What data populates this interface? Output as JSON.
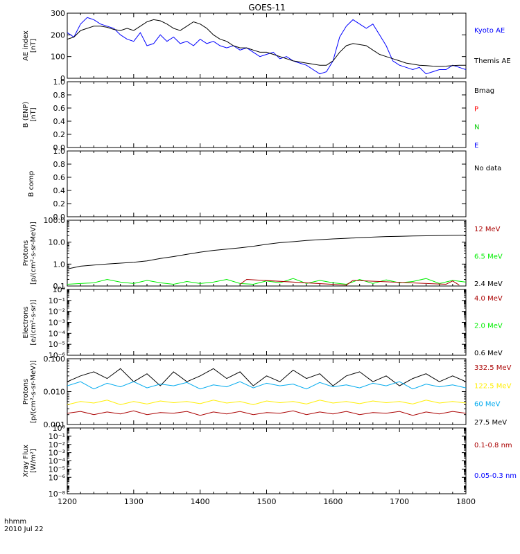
{
  "chart_data": {
    "type": "line",
    "title": "GOES-11",
    "x_footer": {
      "line1": "hhmm",
      "line2": "2010 Jul 22"
    },
    "x_ticks": [
      "1200",
      "1300",
      "1400",
      "1500",
      "1600",
      "1700",
      "1800"
    ],
    "x_range": [
      1200,
      1800
    ],
    "colors": {
      "black": "#000000",
      "blue": "#0000ff",
      "red": "#ff0000",
      "green": "#00cc00",
      "darkred": "#aa0000",
      "lime": "#00ee00",
      "yellow": "#ffee00",
      "cyan": "#00aaee",
      "navy": "#0000ff"
    },
    "panels": [
      {
        "id": "ae",
        "ylabel": [
          "AE index",
          "[nT]"
        ],
        "scale": "linear",
        "ylim": [
          0,
          300
        ],
        "yticks": [
          "0",
          "100",
          "200",
          "300"
        ],
        "yticks_values": [
          0,
          100,
          200,
          300
        ],
        "legend": [
          {
            "label": "Kyoto AE",
            "color": "#0000ff"
          },
          {
            "label": "Themis AE",
            "color": "#000000"
          }
        ],
        "series": [
          {
            "name": "Kyoto AE",
            "color": "#0000ff",
            "x": [
              1200,
              1210,
              1220,
              1230,
              1240,
              1250,
              1260,
              1270,
              1280,
              1290,
              1300,
              1310,
              1320,
              1330,
              1340,
              1350,
              1360,
              1370,
              1380,
              1390,
              1400,
              1410,
              1420,
              1430,
              1440,
              1450,
              1460,
              1470,
              1480,
              1490,
              1500,
              1510,
              1520,
              1530,
              1540,
              1550,
              1560,
              1570,
              1580,
              1590,
              1600,
              1610,
              1620,
              1630,
              1640,
              1650,
              1660,
              1670,
              1680,
              1690,
              1700,
              1710,
              1720,
              1730,
              1740,
              1750,
              1760,
              1770,
              1780,
              1790,
              1800
            ],
            "y": [
              210,
              190,
              250,
              280,
              270,
              250,
              240,
              230,
              200,
              180,
              170,
              210,
              150,
              160,
              200,
              170,
              190,
              160,
              170,
              150,
              180,
              160,
              170,
              150,
              140,
              150,
              130,
              140,
              120,
              100,
              110,
              120,
              90,
              100,
              80,
              70,
              60,
              40,
              20,
              30,
              80,
              190,
              240,
              270,
              250,
              230,
              250,
              200,
              150,
              80,
              60,
              50,
              40,
              50,
              20,
              30,
              40,
              40,
              60,
              50,
              40
            ]
          },
          {
            "name": "Themis AE",
            "color": "#000000",
            "x": [
              1200,
              1210,
              1220,
              1230,
              1240,
              1250,
              1260,
              1270,
              1280,
              1290,
              1300,
              1310,
              1320,
              1330,
              1340,
              1350,
              1360,
              1370,
              1380,
              1390,
              1400,
              1410,
              1420,
              1430,
              1440,
              1450,
              1460,
              1470,
              1480,
              1490,
              1500,
              1510,
              1520,
              1530,
              1540,
              1550,
              1560,
              1570,
              1580,
              1590,
              1600,
              1610,
              1620,
              1630,
              1640,
              1650,
              1660,
              1670,
              1680,
              1690,
              1700,
              1710,
              1720,
              1730,
              1740,
              1750,
              1760,
              1770,
              1780,
              1790,
              1800
            ],
            "y": [
              180,
              190,
              220,
              230,
              240,
              240,
              235,
              225,
              220,
              230,
              220,
              240,
              260,
              270,
              265,
              250,
              230,
              220,
              240,
              260,
              250,
              230,
              200,
              180,
              170,
              150,
              140,
              140,
              130,
              120,
              120,
              110,
              100,
              90,
              80,
              75,
              70,
              65,
              60,
              60,
              80,
              120,
              150,
              160,
              155,
              150,
              130,
              110,
              100,
              90,
              80,
              70,
              65,
              60,
              58,
              56,
              55,
              56,
              58,
              60,
              60
            ]
          }
        ]
      },
      {
        "id": "b_enp",
        "ylabel": [
          "B (ENP)",
          "[nT]"
        ],
        "scale": "linear",
        "ylim": [
          0,
          1
        ],
        "yticks": [
          "0.0",
          "0.2",
          "0.4",
          "0.6",
          "0.8",
          "1.0"
        ],
        "yticks_values": [
          0,
          0.2,
          0.4,
          0.6,
          0.8,
          1.0
        ],
        "legend": [
          {
            "label": "Bmag",
            "color": "#000000"
          },
          {
            "label": "P",
            "color": "#ff0000"
          },
          {
            "label": "N",
            "color": "#00cc00"
          },
          {
            "label": "E",
            "color": "#0000ff"
          }
        ],
        "series": []
      },
      {
        "id": "b_comp",
        "ylabel": [
          "B comp"
        ],
        "scale": "linear",
        "ylim": [
          0,
          1
        ],
        "yticks": [
          "0.0",
          "0.2",
          "0.4",
          "0.6",
          "0.8",
          "1.0"
        ],
        "yticks_values": [
          0,
          0.2,
          0.4,
          0.6,
          0.8,
          1.0
        ],
        "legend": [
          {
            "label": "No data",
            "color": "#000000"
          }
        ],
        "series": []
      },
      {
        "id": "protons_low",
        "ylabel": [
          "Protons",
          "[p/(cm²-s-sr-MeV)]"
        ],
        "scale": "log",
        "ylim": [
          0.1,
          100
        ],
        "yticks": [
          "0.1",
          "1.0",
          "10.0",
          "100.0"
        ],
        "yticks_values": [
          0.1,
          1,
          10,
          100
        ],
        "legend": [
          {
            "label": "12 MeV",
            "color": "#aa0000"
          },
          {
            "label": "6.5 MeV",
            "color": "#00ee00"
          },
          {
            "label": "2.4 MeV",
            "color": "#000000"
          }
        ],
        "series": [
          {
            "name": "2.4 MeV",
            "color": "#000000",
            "x": [
              1200,
              1220,
              1240,
              1260,
              1280,
              1300,
              1320,
              1340,
              1360,
              1380,
              1400,
              1420,
              1440,
              1460,
              1480,
              1500,
              1520,
              1540,
              1560,
              1580,
              1600,
              1620,
              1640,
              1660,
              1680,
              1700,
              1720,
              1740,
              1760,
              1780,
              1800
            ],
            "y": [
              0.6,
              0.8,
              0.9,
              1.0,
              1.1,
              1.2,
              1.4,
              1.8,
              2.2,
              2.8,
              3.5,
              4.2,
              4.8,
              5.5,
              6.5,
              8,
              9.5,
              10.5,
              12,
              13,
              14,
              15,
              16,
              17,
              18,
              18.5,
              19,
              19.5,
              20,
              20.5,
              21
            ]
          },
          {
            "name": "6.5 MeV",
            "color": "#00ee00",
            "x": [
              1200,
              1220,
              1240,
              1260,
              1280,
              1300,
              1320,
              1340,
              1360,
              1380,
              1400,
              1420,
              1440,
              1460,
              1480,
              1500,
              1520,
              1540,
              1560,
              1580,
              1600,
              1620,
              1640,
              1660,
              1680,
              1700,
              1720,
              1740,
              1760,
              1780,
              1800
            ],
            "y": [
              0.12,
              0.13,
              0.14,
              0.2,
              0.15,
              0.13,
              0.18,
              0.14,
              0.12,
              0.16,
              0.13,
              0.15,
              0.2,
              0.13,
              0.12,
              0.17,
              0.14,
              0.22,
              0.13,
              0.18,
              0.14,
              0.12,
              0.2,
              0.13,
              0.19,
              0.14,
              0.16,
              0.22,
              0.13,
              0.18,
              0.15
            ]
          },
          {
            "name": "12 MeV",
            "color": "#aa0000",
            "x": [
              1460,
              1470,
              1620,
              1630,
              1770,
              1780,
              1790
            ],
            "y": [
              0.12,
              0.2,
              0.11,
              0.18,
              0.12,
              0.17,
              0.11
            ]
          }
        ]
      },
      {
        "id": "electrons",
        "ylabel": [
          "Electrons",
          "[e/(cm²-s-sr)]"
        ],
        "scale": "log",
        "ylim": [
          1e-06,
          1
        ],
        "yticks": [
          "10⁻⁶",
          "10⁻⁵",
          "10⁻⁴",
          "10⁻³",
          "10⁻²",
          "10⁻¹",
          "10⁰"
        ],
        "yticks_values": [
          1e-06,
          1e-05,
          0.0001,
          0.001,
          0.01,
          0.1,
          1
        ],
        "legend": [
          {
            "label": "4.0 MeV",
            "color": "#aa0000"
          },
          {
            "label": "2.0 MeV",
            "color": "#00ee00"
          },
          {
            "label": "0.6 MeV",
            "color": "#000000"
          }
        ],
        "series": []
      },
      {
        "id": "protons_high",
        "ylabel": [
          "Protons",
          "[p/(cm²-s-sr-MeV)]"
        ],
        "scale": "log",
        "ylim": [
          0.001,
          0.1
        ],
        "yticks": [
          "0.001",
          "0.010",
          "0.100"
        ],
        "yticks_values": [
          0.001,
          0.01,
          0.1
        ],
        "legend": [
          {
            "label": "332.5 MeV",
            "color": "#aa0000"
          },
          {
            "label": "122.5 MeV",
            "color": "#ffee00"
          },
          {
            "label": "60 MeV",
            "color": "#00aaee"
          },
          {
            "label": "27.5 MeV",
            "color": "#000000"
          }
        ],
        "series": [
          {
            "name": "27.5 MeV",
            "color": "#000000",
            "x": [
              1200,
              1220,
              1240,
              1260,
              1280,
              1300,
              1320,
              1340,
              1360,
              1380,
              1400,
              1420,
              1440,
              1460,
              1480,
              1500,
              1520,
              1540,
              1560,
              1580,
              1600,
              1620,
              1640,
              1660,
              1680,
              1700,
              1720,
              1740,
              1760,
              1780,
              1800
            ],
            "y": [
              0.02,
              0.03,
              0.04,
              0.025,
              0.05,
              0.02,
              0.035,
              0.015,
              0.04,
              0.02,
              0.03,
              0.05,
              0.025,
              0.04,
              0.015,
              0.03,
              0.02,
              0.045,
              0.025,
              0.035,
              0.015,
              0.03,
              0.04,
              0.02,
              0.03,
              0.015,
              0.025,
              0.035,
              0.02,
              0.03,
              0.02
            ]
          },
          {
            "name": "60 MeV",
            "color": "#00aaee",
            "x": [
              1200,
              1220,
              1240,
              1260,
              1280,
              1300,
              1320,
              1340,
              1360,
              1380,
              1400,
              1420,
              1440,
              1460,
              1480,
              1500,
              1520,
              1540,
              1560,
              1580,
              1600,
              1620,
              1640,
              1660,
              1680,
              1700,
              1720,
              1740,
              1760,
              1780,
              1800
            ],
            "y": [
              0.015,
              0.02,
              0.012,
              0.018,
              0.014,
              0.02,
              0.013,
              0.017,
              0.015,
              0.019,
              0.012,
              0.016,
              0.014,
              0.02,
              0.013,
              0.018,
              0.015,
              0.017,
              0.012,
              0.019,
              0.014,
              0.016,
              0.013,
              0.018,
              0.015,
              0.02,
              0.012,
              0.017,
              0.014,
              0.016,
              0.013
            ]
          },
          {
            "name": "122.5 MeV",
            "color": "#ffee00",
            "x": [
              1200,
              1220,
              1240,
              1260,
              1280,
              1300,
              1320,
              1340,
              1360,
              1380,
              1400,
              1420,
              1440,
              1460,
              1480,
              1500,
              1520,
              1540,
              1560,
              1580,
              1600,
              1620,
              1640,
              1660,
              1680,
              1700,
              1720,
              1740,
              1760,
              1780,
              1800
            ],
            "y": [
              0.004,
              0.005,
              0.0045,
              0.0055,
              0.004,
              0.005,
              0.0042,
              0.0052,
              0.0046,
              0.005,
              0.0043,
              0.0055,
              0.0045,
              0.005,
              0.004,
              0.0052,
              0.0046,
              0.005,
              0.0042,
              0.0055,
              0.0045,
              0.005,
              0.0043,
              0.0052,
              0.0046,
              0.005,
              0.0042,
              0.0055,
              0.0045,
              0.005,
              0.0045
            ]
          },
          {
            "name": "332.5 MeV",
            "color": "#aa0000",
            "x": [
              1200,
              1220,
              1240,
              1260,
              1280,
              1300,
              1320,
              1340,
              1360,
              1380,
              1400,
              1420,
              1440,
              1460,
              1480,
              1500,
              1520,
              1540,
              1560,
              1580,
              1600,
              1620,
              1640,
              1660,
              1680,
              1700,
              1720,
              1740,
              1760,
              1780,
              1800
            ],
            "y": [
              0.0022,
              0.0025,
              0.002,
              0.0024,
              0.0021,
              0.0026,
              0.002,
              0.0023,
              0.0022,
              0.0025,
              0.0019,
              0.0024,
              0.0021,
              0.0025,
              0.002,
              0.0023,
              0.0022,
              0.0026,
              0.002,
              0.0024,
              0.0021,
              0.0025,
              0.002,
              0.0023,
              0.0022,
              0.0025,
              0.0019,
              0.0024,
              0.0021,
              0.0025,
              0.0022
            ]
          }
        ]
      },
      {
        "id": "xray",
        "ylabel": [
          "Xray Flux",
          "[W/m²]"
        ],
        "scale": "log",
        "ylim": [
          1e-08,
          1
        ],
        "yticks": [
          "10⁻⁸",
          "10⁻⁶",
          "10⁻⁵",
          "10⁻⁴",
          "10⁻³",
          "10⁻²",
          "10⁻¹",
          "10⁰"
        ],
        "yticks_values": [
          1e-08,
          1e-06,
          1e-05,
          0.0001,
          0.001,
          0.01,
          0.1,
          1
        ],
        "legend": [
          {
            "label": "0.1-0.8 nm",
            "color": "#aa0000"
          },
          {
            "label": "0.05-0.3 nm",
            "color": "#0000ff"
          }
        ],
        "series": []
      }
    ]
  }
}
